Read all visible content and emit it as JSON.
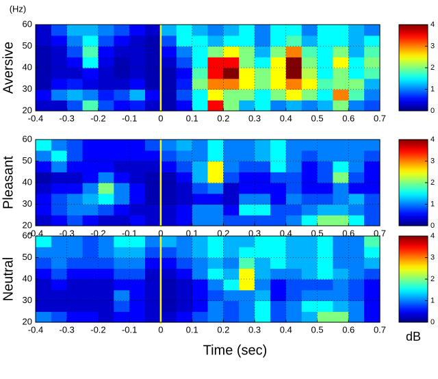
{
  "chart_data": [
    {
      "type": "heatmap",
      "ylabel": "Aversive",
      "yunit": "(Hz)",
      "xlim": [
        -0.4,
        0.7
      ],
      "xticks": [
        -0.4,
        -0.3,
        -0.2,
        -0.1,
        0,
        0.1,
        0.2,
        0.3,
        0.4,
        0.5,
        0.6,
        0.7
      ],
      "ylim": [
        20,
        60
      ],
      "yticks": [
        20,
        30,
        40,
        50,
        60
      ],
      "grid": true,
      "clim": [
        0,
        4
      ],
      "cticks": [
        0,
        1,
        2,
        3,
        4
      ],
      "colormap": "jet",
      "vline": 0,
      "vline_color": "#ffff00",
      "z": [
        [
          0.3,
          0.3,
          0.8,
          1.8,
          0.8,
          0.5,
          0.6,
          0.3,
          0.2,
          0.5,
          1.5,
          3.5,
          2,
          1.2,
          1.5,
          1,
          1.2,
          1,
          1.2,
          2,
          1,
          0.8
        ],
        [
          0.5,
          1,
          1.2,
          1,
          0.6,
          0.8,
          1.2,
          0.5,
          0.2,
          0.8,
          1.5,
          2.5,
          2,
          2,
          1.5,
          2,
          2.5,
          2,
          1.5,
          3,
          1.8,
          1
        ],
        [
          0.2,
          0.5,
          0.6,
          0.4,
          0.3,
          0.3,
          0.5,
          0.2,
          0.2,
          0.6,
          2,
          3,
          3,
          2.5,
          2,
          2.5,
          3,
          2.5,
          1.8,
          2,
          2,
          1.2
        ],
        [
          0.2,
          0.3,
          0.3,
          0.5,
          0.3,
          0.2,
          0.3,
          0.2,
          0.2,
          0.5,
          1.8,
          3.5,
          4,
          2.5,
          2,
          2.5,
          4,
          2.2,
          1.5,
          2,
          1.5,
          1.8
        ],
        [
          0.2,
          0.3,
          0.5,
          1.5,
          0.4,
          0.2,
          0.3,
          0.2,
          0.3,
          0.8,
          1.5,
          3.5,
          3.5,
          2,
          1.5,
          2.5,
          4,
          2,
          1.5,
          2.5,
          1.5,
          2
        ],
        [
          0.2,
          0.3,
          0.8,
          1.8,
          0.5,
          0.3,
          0.3,
          0.2,
          0.5,
          1,
          1.5,
          2,
          2.5,
          2,
          1.2,
          2,
          3,
          1.8,
          1.5,
          2,
          1.2,
          1.8
        ],
        [
          0.3,
          0.5,
          1,
          1.5,
          0.8,
          0.5,
          0.3,
          0.2,
          0.8,
          1.5,
          1.5,
          1.2,
          1.5,
          1.5,
          1,
          1.5,
          1.8,
          1.2,
          1.5,
          1.5,
          1.2,
          1.5
        ],
        [
          0.3,
          0.8,
          1.2,
          1.2,
          1,
          0.8,
          0.5,
          0.3,
          1.2,
          1.5,
          1.2,
          1,
          1.2,
          1.5,
          1,
          1.5,
          1.5,
          1,
          1.5,
          1.5,
          1.2,
          1
        ]
      ]
    },
    {
      "type": "heatmap",
      "ylabel": "Pleasant",
      "xlim": [
        -0.4,
        0.7
      ],
      "xticks": [
        -0.4,
        -0.3,
        -0.2,
        -0.1,
        0,
        0.1,
        0.2,
        0.3,
        0.4,
        0.5,
        0.6,
        0.7
      ],
      "ylim": [
        20,
        60
      ],
      "yticks": [
        20,
        30,
        40,
        50,
        60
      ],
      "grid": true,
      "clim": [
        0,
        4
      ],
      "cticks": [
        0,
        1,
        2,
        3,
        4
      ],
      "colormap": "jet",
      "vline": 0,
      "vline_color": "#ffff00",
      "z": [
        [
          0.3,
          0.5,
          0.8,
          0.5,
          0.3,
          0.3,
          0.5,
          0.3,
          0.3,
          0.5,
          1,
          1,
          0.8,
          0.8,
          0.8,
          0.8,
          1,
          1.5,
          2,
          2,
          1.5,
          0.8
        ],
        [
          0.5,
          0.8,
          1,
          1,
          0.8,
          0.5,
          0.3,
          0.3,
          0.3,
          0.5,
          1,
          1,
          0.5,
          1.5,
          1.5,
          0.8,
          0.8,
          1,
          1.2,
          1.2,
          1,
          0.8
        ],
        [
          0.5,
          0.8,
          1,
          1.2,
          1.5,
          1,
          0.5,
          0.2,
          0.2,
          0.3,
          0.5,
          0.5,
          0.3,
          1,
          1,
          0.5,
          1,
          0.8,
          0.8,
          1,
          1.2,
          0.8
        ],
        [
          0.3,
          0.5,
          0.5,
          1,
          2,
          1,
          0.5,
          0.2,
          0.2,
          0.3,
          0.8,
          1,
          0.3,
          0.5,
          0.5,
          0.5,
          0.8,
          0.5,
          0.5,
          1,
          0.5,
          0.5
        ],
        [
          0.2,
          0.3,
          0.3,
          0.5,
          1,
          0.5,
          0.3,
          0.2,
          0.2,
          0.5,
          1.2,
          2.5,
          0.8,
          0.5,
          0.5,
          0.8,
          0.8,
          0.5,
          0.8,
          2,
          0.8,
          0.5
        ],
        [
          0.5,
          1,
          0.5,
          0.5,
          0.5,
          0.3,
          0.3,
          0.3,
          0.5,
          0.8,
          1.2,
          2.5,
          1,
          0.8,
          0.8,
          1.5,
          1,
          0.5,
          0.8,
          1.5,
          1,
          0.5
        ],
        [
          1,
          1.5,
          0.8,
          0.5,
          0.5,
          0.5,
          0.5,
          0.5,
          0.8,
          1,
          1,
          1.5,
          1,
          1,
          1.2,
          1.5,
          1,
          0.8,
          1,
          1,
          1,
          0.8
        ],
        [
          1.5,
          1,
          0.8,
          0.5,
          0.5,
          0.5,
          0.5,
          0.8,
          1,
          1.2,
          1,
          1.5,
          1,
          1,
          1.2,
          1.5,
          1,
          1,
          1,
          1,
          1,
          1
        ]
      ]
    },
    {
      "type": "heatmap",
      "ylabel": "Neutral",
      "xlabel": "Time (sec)",
      "colorbar_label": "dB",
      "xlim": [
        -0.4,
        0.7
      ],
      "xticks": [
        -0.4,
        -0.3,
        -0.2,
        -0.1,
        0,
        0.1,
        0.2,
        0.3,
        0.4,
        0.5,
        0.6,
        0.7
      ],
      "ylim": [
        20,
        60
      ],
      "yticks": [
        20,
        30,
        40,
        50,
        60
      ],
      "grid": true,
      "clim": [
        0,
        4
      ],
      "cticks": [
        0,
        1,
        2,
        3,
        4
      ],
      "colormap": "jet",
      "vline": 0,
      "vline_color": "#ffff00",
      "z": [
        [
          1,
          0.8,
          0.5,
          0.5,
          0.3,
          0.5,
          0.5,
          0.3,
          0.3,
          0.5,
          0.8,
          1,
          0.8,
          1,
          1.5,
          0.8,
          1,
          1.2,
          2,
          2,
          1,
          0.5
        ],
        [
          0.3,
          0.3,
          0.3,
          0.3,
          0.3,
          0.8,
          0.5,
          0.3,
          0.2,
          0.3,
          0.5,
          1,
          0.8,
          1,
          1.5,
          0.8,
          1,
          1.5,
          1.5,
          1.2,
          1,
          0.5
        ],
        [
          0.3,
          0.3,
          0.3,
          0.3,
          0.3,
          1,
          0.5,
          0.3,
          0.2,
          0.3,
          0.5,
          0.8,
          1,
          1,
          1.2,
          0.5,
          0.8,
          1,
          1,
          1,
          0.8,
          0.5
        ],
        [
          0.3,
          0.5,
          0.3,
          0.3,
          0.3,
          0.5,
          0.5,
          0.3,
          0.2,
          0.3,
          0.5,
          1,
          1.5,
          2.5,
          1,
          0.5,
          0.8,
          0.8,
          0.8,
          1,
          0.8,
          0.5
        ],
        [
          0.5,
          0.8,
          0.5,
          0.5,
          0.5,
          0.8,
          0.8,
          0.3,
          0.3,
          0.5,
          1,
          1.5,
          1.2,
          2.5,
          1.2,
          1,
          1,
          1.2,
          1.5,
          1.2,
          1,
          0.8
        ],
        [
          0.8,
          1,
          0.8,
          0.8,
          0.8,
          1,
          1,
          0.5,
          0.5,
          0.8,
          1,
          1.2,
          1,
          1.8,
          1.2,
          1.5,
          1.2,
          1.2,
          1.5,
          1,
          1,
          1.2
        ],
        [
          1,
          1,
          1,
          0.8,
          1,
          1.2,
          1.2,
          0.8,
          0.8,
          1,
          1.2,
          1.5,
          1.2,
          1.5,
          1.5,
          1.5,
          1.2,
          1.2,
          1.5,
          1,
          1,
          1.5
        ],
        [
          1.5,
          1,
          1,
          0.8,
          1,
          1.5,
          1.5,
          1,
          1.2,
          1,
          1.2,
          1.5,
          1.2,
          1.2,
          1.5,
          1.5,
          1.2,
          1.2,
          1.5,
          1,
          1,
          1.8
        ]
      ]
    }
  ]
}
